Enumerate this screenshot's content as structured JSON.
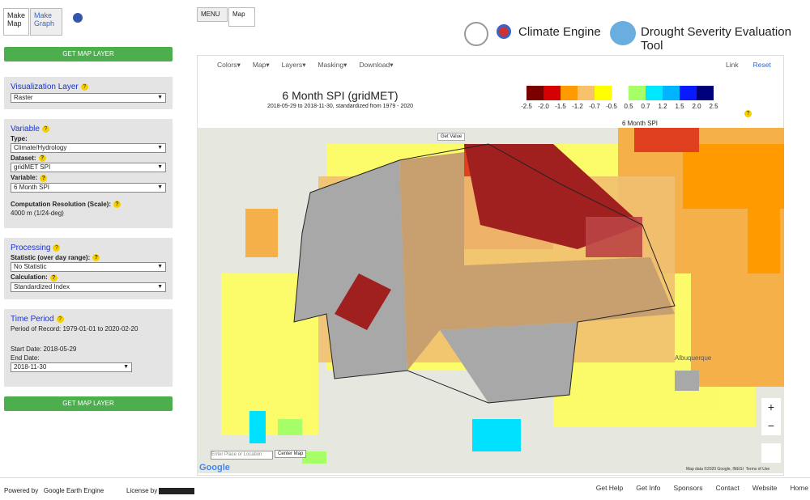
{
  "left": {
    "tabs": [
      "Make\nMap",
      "Make\nGraph"
    ],
    "button": "GET MAP LAYER",
    "viz": {
      "title": "Visualization Layer",
      "value": "Raster"
    },
    "variable": {
      "title": "Variable",
      "type_label": "Type:",
      "type": "Climate/Hydrology",
      "dataset_label": "Dataset:",
      "dataset": "gridMET SPI",
      "variable_label": "Variable:",
      "variable": "6 Month SPI",
      "scale_label": "Computation Resolution (Scale):",
      "scale": "4000 m (1/24-deg)"
    },
    "processing": {
      "title": "Processing",
      "stat_label": "Statistic (over day range):",
      "stat": "No Statistic",
      "calc_label": "Calculation:",
      "calc": "Standardized Index"
    },
    "time": {
      "title": "Time Period",
      "record": "Period of Record: 1979-01-01 to 2020-02-20",
      "start": "Start Date: 2018-05-29",
      "end_label": "End Date:",
      "end": "2018-11-30"
    }
  },
  "top_tabs": [
    "MENU",
    "Map"
  ],
  "header": {
    "brand": "Climate Engine",
    "tool": "Drought Severity Evaluation Tool"
  },
  "toolbar": {
    "menus": [
      "Colors",
      "Map",
      "Layers",
      "Masking",
      "Download"
    ],
    "right": [
      "Link",
      "Reset"
    ]
  },
  "map": {
    "title": "6 Month SPI (gridMET)",
    "subtitle": "2018-05-29 to 2018-11-30, standardized from 1979 - 2020",
    "legend": {
      "labels": [
        "-2.5",
        "-2.0",
        "-1.5",
        "-1.2",
        "-0.7",
        "-0.5",
        "0.5",
        "0.7",
        "1.2",
        "1.5",
        "2.0",
        "2.5"
      ],
      "colors": [
        "#7a0000",
        "#d60000",
        "#ff9a00",
        "#f7c26b",
        "#ffff00",
        "#ffffff",
        "#a6ff66",
        "#00e8ff",
        "#00b4ff",
        "#0a1aff",
        "#00007a"
      ],
      "caption": "6 Month SPI"
    },
    "get_value": "Get Value",
    "zoom_in": "+",
    "zoom_out": "−",
    "search": "Enter Place or Location",
    "center": "Center Map",
    "google": "Google",
    "attribution": "Map data ©2020 Google, INEGI",
    "terms": "Terms of Use",
    "city": "Albuquerque"
  },
  "footer": {
    "powered": "Powered by",
    "engine": "Google Earth Engine",
    "license": "License by",
    "links": [
      "Get Help",
      "Get Info",
      "Sponsors",
      "Contact",
      "Website",
      "Home"
    ]
  }
}
